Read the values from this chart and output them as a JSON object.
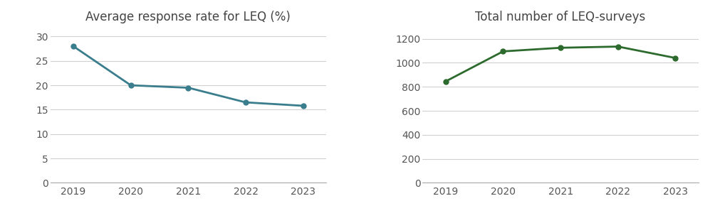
{
  "chart1": {
    "title": "Average response rate for LEQ (%)",
    "years": [
      2019,
      2020,
      2021,
      2022,
      2023
    ],
    "values": [
      28,
      20,
      19.5,
      16.5,
      15.8
    ],
    "line_color": "#3a7d8c",
    "marker": "o",
    "marker_size": 5,
    "ylim": [
      0,
      32
    ],
    "yticks": [
      0,
      5,
      10,
      15,
      20,
      25,
      30
    ]
  },
  "chart2": {
    "title": "Total number of LEQ-surveys",
    "years": [
      2019,
      2020,
      2021,
      2022,
      2023
    ],
    "values": [
      845,
      1095,
      1125,
      1135,
      1040
    ],
    "line_color": "#2d6a2d",
    "marker": "o",
    "marker_size": 5,
    "ylim": [
      0,
      1300
    ],
    "yticks": [
      0,
      200,
      400,
      600,
      800,
      1000,
      1200
    ]
  },
  "title_fontsize": 12,
  "tick_fontsize": 10,
  "grid_color": "#d0d0d0",
  "background_color": "#ffffff",
  "fig_facecolor": "#ffffff",
  "figsize": [
    10.11,
    3.14
  ],
  "dpi": 100
}
